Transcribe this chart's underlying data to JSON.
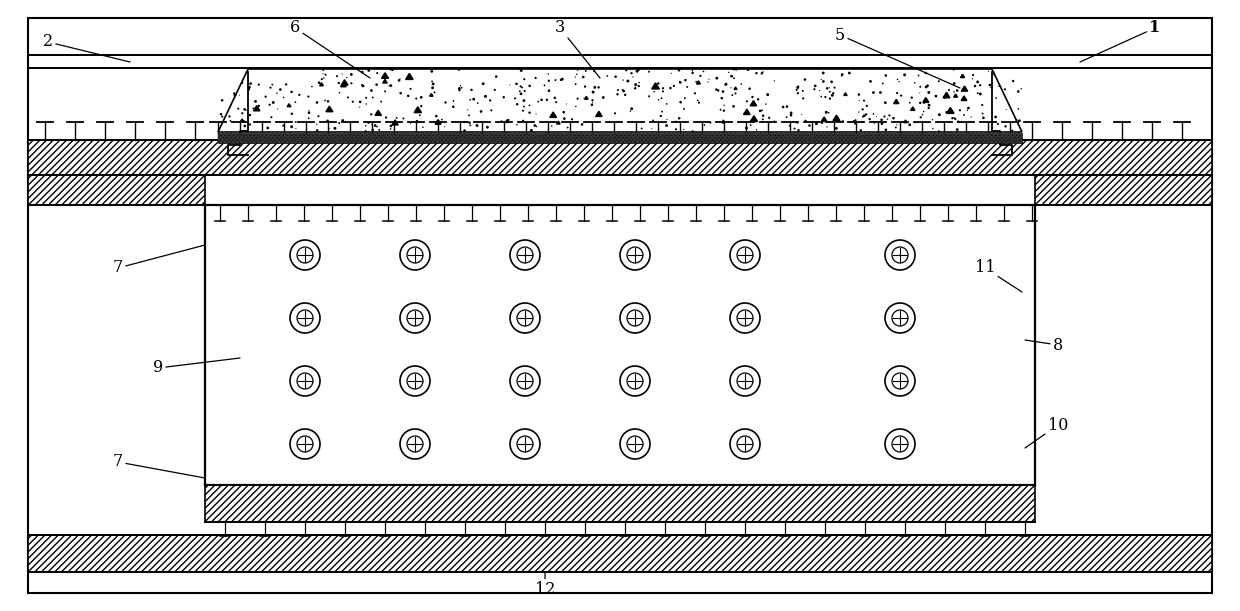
{
  "bg_color": "#ffffff",
  "lc": "#000000",
  "fig_width": 12.4,
  "fig_height": 6.11,
  "dpi": 100,
  "labels": {
    "1": [
      1155,
      28,
      1080,
      62
    ],
    "2": [
      48,
      42,
      130,
      62
    ],
    "3": [
      560,
      28,
      600,
      78
    ],
    "5": [
      840,
      35,
      960,
      88
    ],
    "6": [
      295,
      28,
      370,
      78
    ],
    "7a": [
      118,
      268,
      205,
      245
    ],
    "7b": [
      118,
      462,
      205,
      478
    ],
    "8": [
      1058,
      345,
      1025,
      340
    ],
    "9": [
      158,
      368,
      240,
      358
    ],
    "10": [
      1058,
      425,
      1025,
      448
    ],
    "11": [
      985,
      268,
      1022,
      292
    ],
    "12": [
      545,
      590,
      545,
      572
    ]
  }
}
